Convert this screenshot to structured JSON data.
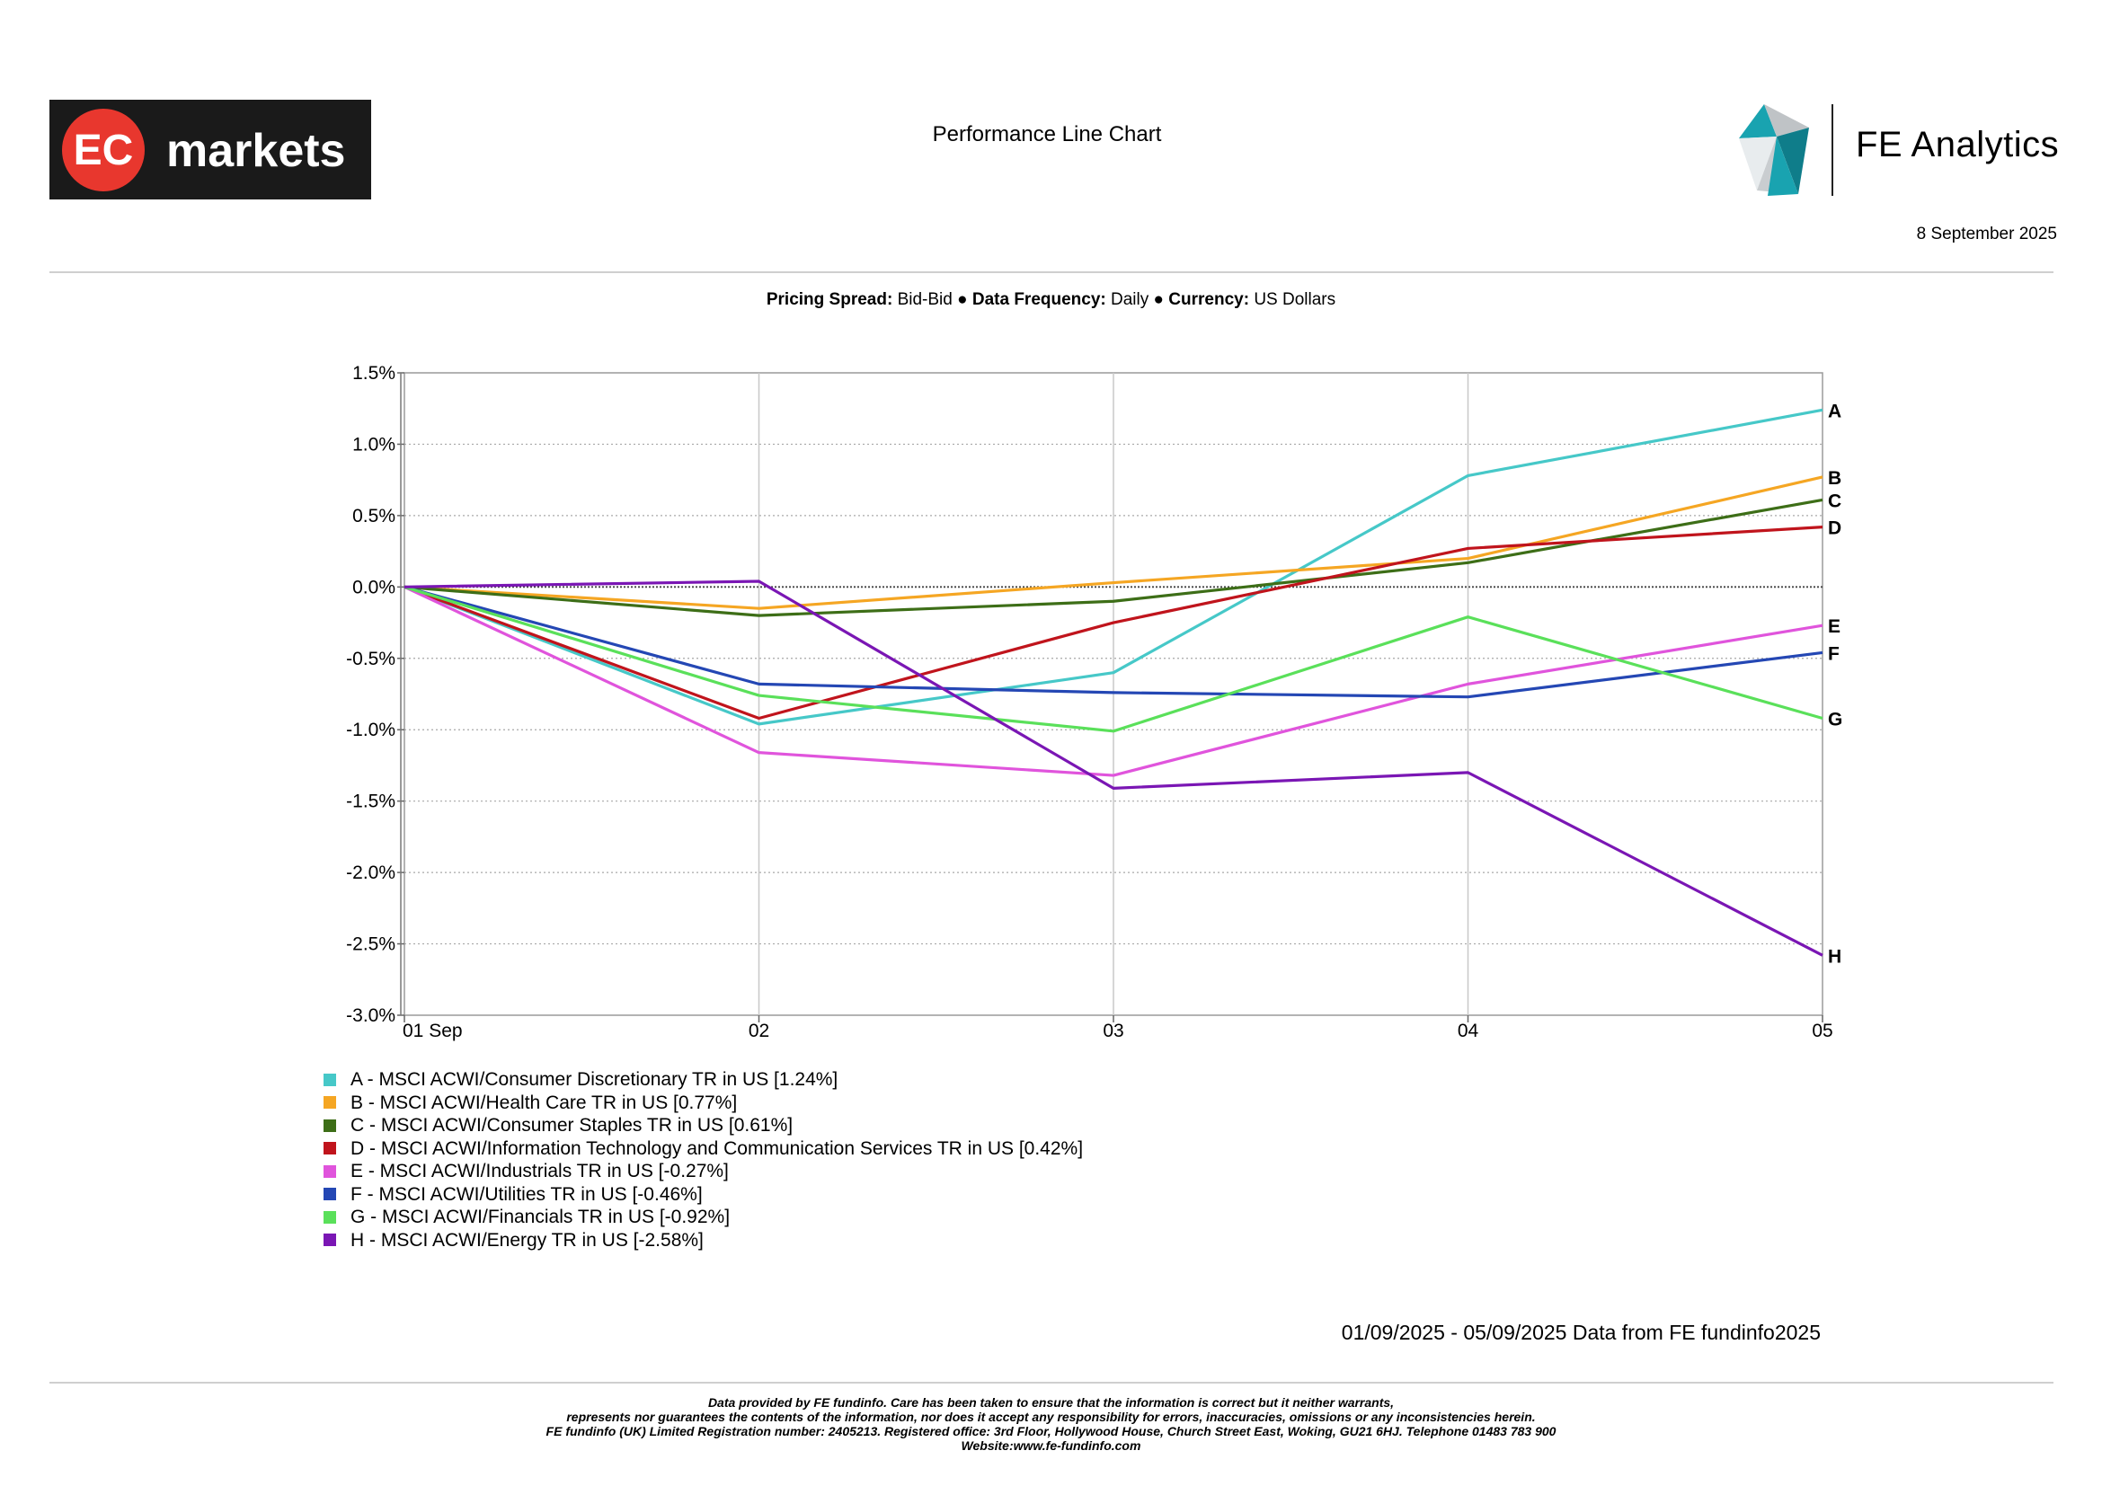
{
  "header": {
    "left_logo": {
      "text_ec": "EC",
      "text_markets": "markets",
      "bg": "#1a1a1a",
      "circle": "#e8372e"
    },
    "title": "Performance Line Chart",
    "right_logo": {
      "text": "FE Analytics",
      "colors": [
        "#19a3b0",
        "#0f7d8a",
        "#bfc3c6"
      ]
    },
    "date": "8 September 2025"
  },
  "meta": {
    "pricing_spread_label": "Pricing Spread:",
    "pricing_spread_value": "Bid-Bid",
    "frequency_label": "Data Frequency:",
    "frequency_value": "Daily",
    "currency_label": "Currency:",
    "currency_value": "US Dollars",
    "separator": "●"
  },
  "chart_data": {
    "type": "line",
    "categories": [
      "01 Sep",
      "02",
      "03",
      "04",
      "05"
    ],
    "x": [
      0,
      1,
      2,
      3,
      4
    ],
    "ylim": [
      -3.0,
      1.5
    ],
    "yticks": [
      1.5,
      1.0,
      0.5,
      0.0,
      -0.5,
      -1.0,
      -1.5,
      -2.0,
      -2.5,
      -3.0
    ],
    "ytick_labels": [
      "1.5%",
      "1.0%",
      "0.5%",
      "0.0%",
      "-0.5%",
      "-1.0%",
      "-1.5%",
      "-2.0%",
      "-2.5%",
      "-3.0%"
    ],
    "grid": true,
    "series": [
      {
        "letter": "A",
        "name": "A - MSCI ACWI/Consumer Discretionary TR in US [1.24%]",
        "color": "#46c8c8",
        "values": [
          0,
          -0.96,
          -0.6,
          0.78,
          1.24
        ]
      },
      {
        "letter": "B",
        "name": "B - MSCI ACWI/Health Care TR in US [0.77%]",
        "color": "#f5a623",
        "values": [
          0,
          -0.15,
          0.03,
          0.2,
          0.77
        ]
      },
      {
        "letter": "C",
        "name": "C - MSCI ACWI/Consumer Staples TR in US [0.61%]",
        "color": "#3d6e17",
        "values": [
          0,
          -0.2,
          -0.1,
          0.17,
          0.61
        ]
      },
      {
        "letter": "D",
        "name": "D - MSCI ACWI/Information Technology and Communication Services TR in US [0.42%]",
        "color": "#c0141c",
        "values": [
          0,
          -0.92,
          -0.25,
          0.27,
          0.42
        ]
      },
      {
        "letter": "E",
        "name": "E - MSCI ACWI/Industrials TR in US [-0.27%]",
        "color": "#e054dc",
        "values": [
          0,
          -1.16,
          -1.32,
          -0.68,
          -0.27
        ]
      },
      {
        "letter": "F",
        "name": "F - MSCI ACWI/Utilities TR in US [-0.46%]",
        "color": "#2447b4",
        "values": [
          0,
          -0.68,
          -0.74,
          -0.77,
          -0.46
        ]
      },
      {
        "letter": "G",
        "name": "G - MSCI ACWI/Financials TR in US [-0.92%]",
        "color": "#5ae05a",
        "values": [
          0,
          -0.76,
          -1.01,
          -0.21,
          -0.92
        ]
      },
      {
        "letter": "H",
        "name": "H - MSCI ACWI/Energy TR in US [-2.58%]",
        "color": "#7a16b4",
        "values": [
          0,
          0.04,
          -1.41,
          -1.3,
          -2.58
        ]
      }
    ]
  },
  "footer": {
    "range_note": "01/09/2025 - 05/09/2025 Data from FE fundinfo2025",
    "disclaimer": [
      "Data provided by FE fundinfo. Care has been taken to ensure that the information is correct but it neither warrants,",
      "represents nor guarantees the contents of the information, nor does it accept any responsibility for errors, inaccuracies, omissions or any inconsistencies herein.",
      "FE fundinfo (UK) Limited Registration number: 2405213. Registered office: 3rd Floor, Hollywood House, Church Street East, Woking, GU21 6HJ. Telephone 01483 783 900",
      "Website:www.fe-fundinfo.com"
    ]
  }
}
